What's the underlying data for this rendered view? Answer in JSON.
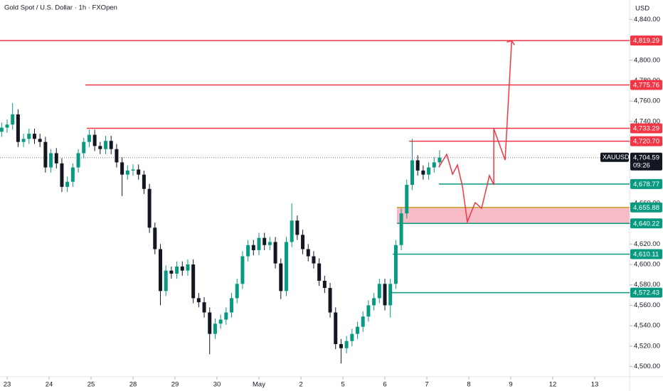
{
  "chart_data": {
    "type": "candlestick",
    "title": "Gold Spot / U.S. Dollar · 1h · FXOpen",
    "y_unit": "USD",
    "up_color": "#089981",
    "down_color": "#131722",
    "xlim": [
      -3.9,
      341.1
    ],
    "xticks": [
      {
        "value": 0,
        "label": "23"
      },
      {
        "value": 23,
        "label": "24"
      },
      {
        "value": 46,
        "label": "25"
      },
      {
        "value": 69,
        "label": "28"
      },
      {
        "value": 92,
        "label": "29"
      },
      {
        "value": 115,
        "label": "30"
      },
      {
        "value": 138,
        "label": "May"
      },
      {
        "value": 161,
        "label": "2"
      },
      {
        "value": 184,
        "label": "5"
      },
      {
        "value": 207,
        "label": "6"
      },
      {
        "value": 230,
        "label": "7"
      },
      {
        "value": 253,
        "label": "8"
      },
      {
        "value": 276,
        "label": "9"
      },
      {
        "value": 299,
        "label": "12"
      },
      {
        "value": 322,
        "label": "13"
      }
    ],
    "ylim": [
      4490,
      4859
    ],
    "yticks": [
      {
        "value": 4500,
        "label": "4,500.00"
      },
      {
        "value": 4520,
        "label": "4,520.00"
      },
      {
        "value": 4540,
        "label": "4,540.00"
      },
      {
        "value": 4560,
        "label": "4,560.00"
      },
      {
        "value": 4580,
        "label": "4,580.00"
      },
      {
        "value": 4600,
        "label": "4,600.00"
      },
      {
        "value": 4620,
        "label": "4,620.00"
      },
      {
        "value": 4640,
        "label": "4,640.00"
      },
      {
        "value": 4660,
        "label": "4,660.00"
      },
      {
        "value": 4680,
        "label": "4,680.00"
      },
      {
        "value": 4700,
        "label": "4,700.00"
      },
      {
        "value": 4720,
        "label": "4,720.00"
      },
      {
        "value": 4740,
        "label": "4,740.00"
      },
      {
        "value": 4760,
        "label": "4,760.00"
      },
      {
        "value": 4780,
        "label": "4,780.00"
      },
      {
        "value": 4800,
        "label": "4,800.00"
      },
      {
        "value": 4820,
        "label": "4,820.00"
      },
      {
        "value": 4840,
        "label": "4,840.00"
      }
    ],
    "x": [
      -3,
      0,
      3,
      6,
      9,
      12,
      15,
      18,
      21,
      24,
      27,
      30,
      33,
      36,
      39,
      42,
      45,
      48,
      51,
      54,
      57,
      60,
      63,
      66,
      69,
      72,
      75,
      78,
      81,
      84,
      87,
      90,
      93,
      96,
      99,
      102,
      105,
      108,
      111,
      114,
      117,
      120,
      123,
      126,
      129,
      132,
      135,
      138,
      141,
      144,
      147,
      150,
      153,
      156,
      159,
      162,
      165,
      168,
      171,
      174,
      177,
      180,
      183,
      186,
      189,
      192,
      195,
      198,
      201,
      204,
      207,
      210,
      213,
      216,
      219,
      222,
      225,
      228,
      231,
      234,
      237
    ],
    "open": [
      4730,
      4734,
      4737,
      4747,
      4720,
      4723,
      4728,
      4723,
      4720,
      4695,
      4709,
      4699,
      4676,
      4681,
      4695,
      4709,
      4720,
      4727,
      4716,
      4713,
      4721,
      4713,
      4700,
      4688,
      4692,
      4693,
      4688,
      4674,
      4636,
      4615,
      4574,
      4594,
      4591,
      4598,
      4594,
      4600,
      4567,
      4563,
      4553,
      4532,
      4542,
      4546,
      4553,
      4567,
      4581,
      4608,
      4619,
      4614,
      4626,
      4619,
      4622,
      4601,
      4574,
      4622,
      4643,
      4629,
      4615,
      4608,
      4601,
      4584,
      4577,
      4553,
      4522,
      4518,
      4525,
      4532,
      4539,
      4549,
      4560,
      4567,
      4581,
      4560,
      4581,
      4619,
      4650,
      4678,
      4702,
      4692,
      4688,
      4695,
      4700
    ],
    "high": [
      4739,
      4742,
      4758,
      4752,
      4728,
      4733,
      4733,
      4728,
      4725,
      4713,
      4714,
      4704,
      4686,
      4699,
      4713,
      4724,
      4732,
      4732,
      4720,
      4726,
      4726,
      4718,
      4705,
      4697,
      4698,
      4698,
      4692,
      4679,
      4641,
      4620,
      4599,
      4598,
      4603,
      4603,
      4605,
      4605,
      4572,
      4568,
      4558,
      4547,
      4551,
      4558,
      4572,
      4586,
      4613,
      4624,
      4624,
      4631,
      4631,
      4627,
      4627,
      4606,
      4627,
      4660,
      4648,
      4634,
      4620,
      4613,
      4606,
      4589,
      4582,
      4558,
      4527,
      4530,
      4537,
      4544,
      4554,
      4565,
      4572,
      4586,
      4586,
      4586,
      4624,
      4655,
      4683,
      4723,
      4707,
      4697,
      4700,
      4705,
      4712
    ],
    "low": [
      4725,
      4729,
      4732,
      4715,
      4715,
      4718,
      4718,
      4715,
      4690,
      4690,
      4694,
      4671,
      4671,
      4676,
      4690,
      4704,
      4715,
      4711,
      4708,
      4708,
      4708,
      4695,
      4667,
      4683,
      4687,
      4683,
      4669,
      4631,
      4610,
      4560,
      4569,
      4586,
      4586,
      4589,
      4589,
      4562,
      4558,
      4548,
      4512,
      4527,
      4537,
      4541,
      4548,
      4562,
      4576,
      4603,
      4609,
      4609,
      4614,
      4614,
      4596,
      4566,
      4569,
      4617,
      4624,
      4610,
      4603,
      4596,
      4579,
      4572,
      4548,
      4517,
      4503,
      4513,
      4520,
      4527,
      4534,
      4544,
      4555,
      4562,
      4555,
      4548,
      4576,
      4614,
      4645,
      4673,
      4687,
      4683,
      4683,
      4690,
      4695
    ],
    "close": [
      4734,
      4737,
      4747,
      4720,
      4723,
      4728,
      4723,
      4720,
      4695,
      4709,
      4699,
      4676,
      4681,
      4695,
      4709,
      4720,
      4727,
      4716,
      4713,
      4721,
      4713,
      4700,
      4688,
      4692,
      4693,
      4688,
      4674,
      4636,
      4615,
      4574,
      4594,
      4591,
      4598,
      4594,
      4600,
      4567,
      4563,
      4553,
      4532,
      4542,
      4546,
      4553,
      4567,
      4581,
      4608,
      4619,
      4614,
      4626,
      4619,
      4622,
      4601,
      4574,
      4622,
      4643,
      4629,
      4615,
      4608,
      4601,
      4584,
      4577,
      4553,
      4522,
      4518,
      4525,
      4532,
      4539,
      4549,
      4560,
      4567,
      4581,
      4560,
      4581,
      4619,
      4650,
      4678,
      4702,
      4692,
      4688,
      4695,
      4700,
      4704.59
    ],
    "current_price": {
      "symbol": "XAUUSD",
      "value": 4704.59,
      "value_label": "4,704.59",
      "countdown": "09:26"
    },
    "price_lines": [
      {
        "value": 4819.29,
        "value_label": "4,819.29",
        "x_start": -3.9,
        "color": "#f23645",
        "label_color": "#f23645"
      },
      {
        "value": 4775.76,
        "value_label": "4,775.76",
        "x_start": 42.9,
        "color": "#f23645",
        "label_color": "#f23645"
      },
      {
        "value": 4733.29,
        "value_label": "4,733.29",
        "x_start": 43.7,
        "color": "#f23645",
        "label_color": "#f23645"
      },
      {
        "value": 4720.7,
        "value_label": "4,720.70",
        "x_start": 220.3,
        "color": "#f23645",
        "label_color": "#f23645"
      },
      {
        "value": 4678.77,
        "value_label": "4,678.77",
        "x_start": 236.6,
        "color": "#089981",
        "label_color": "#089981"
      },
      {
        "value": 4655.88,
        "value_label": "4,655.88",
        "x_start": 213.6,
        "color": "#c9a227",
        "label_color": "#089981"
      },
      {
        "value": 4640.22,
        "value_label": "4,640.22",
        "x_start": 213.6,
        "color": "#089981",
        "label_color": "#089981"
      },
      {
        "value": 4610.11,
        "value_label": "4,610.11",
        "x_start": 211.3,
        "color": "#089981",
        "label_color": "#089981"
      },
      {
        "value": 4572.43,
        "value_label": "4,572.43",
        "x_start": 209.7,
        "color": "#089981",
        "label_color": "#089981"
      }
    ],
    "zone": {
      "x_start": 213.6,
      "low": 4640.22,
      "high": 4655.88,
      "color": "#f8bcc6"
    },
    "projection": {
      "color": "#f23645",
      "x": [
        236.6,
        240.9,
        244.1,
        246.8,
        249.5,
        252.2,
        256.5,
        260.0,
        264.3,
        266.7,
        266.7,
        272.9,
        276.5
      ],
      "values": [
        4695.4,
        4707.9,
        4688.4,
        4697.4,
        4676.6,
        4641.8,
        4660.6,
        4655.0,
        4687.0,
        4678.0,
        4732.9,
        4702.3,
        4819.1
      ]
    }
  }
}
